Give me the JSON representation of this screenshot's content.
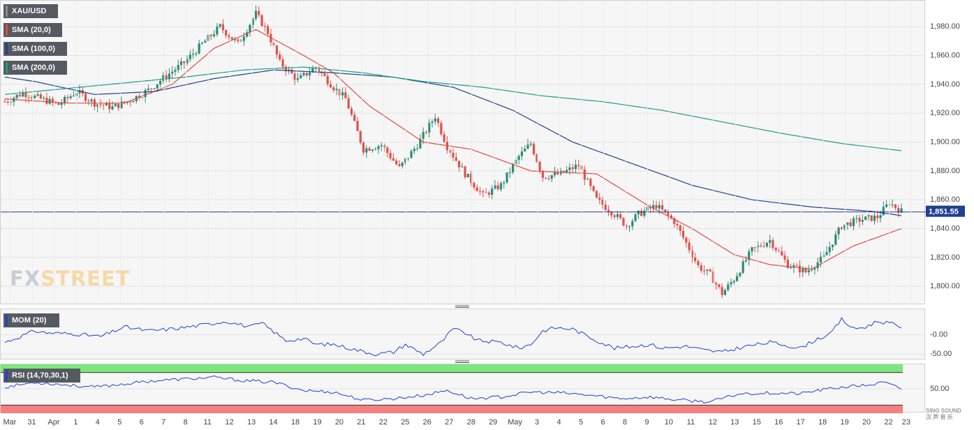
{
  "legends": {
    "symbol": "XAU/USD",
    "sma20": "SMA (20,0)",
    "sma100": "SMA (100,0)",
    "sma200": "SMA (200,0)",
    "mom": "MOM (20)",
    "rsi": "RSI (14,70,30,1)"
  },
  "logo": {
    "fx": "FX",
    "street": "STREET"
  },
  "watermark": {
    "line1": "SINO SOUND",
    "line2": "汉 声 音 乐"
  },
  "colors": {
    "bull": "#2e8b74",
    "bear": "#e0524a",
    "sma20": "#e8473f",
    "sma100": "#1f3f93",
    "sma200": "#1e9e7e",
    "mom": "#1f3fd6",
    "rsi": "#1f3fd6",
    "overbought": "#7ce77c",
    "oversold": "#f58080",
    "price_line": "#1f3f93",
    "price_tag": "#1f3f93"
  },
  "chart_data": {
    "type": "candlestick",
    "symbol": "XAU/USD",
    "timeframe": "4h",
    "current_price": "1,851.55",
    "ylim": [
      1787,
      1998
    ],
    "y_ticks": [
      "1,980.00",
      "1,960.00",
      "1,940.00",
      "1,920.00",
      "1,900.00",
      "1,880.00",
      "1,860.00",
      "1,840.00",
      "1,820.00",
      "1,800.00"
    ],
    "x_labels": [
      "Mar",
      "31",
      "Apr",
      "1",
      "4",
      "5",
      "6",
      "7",
      "8",
      "11",
      "12",
      "13",
      "14",
      "18",
      "19",
      "20",
      "21",
      "22",
      "25",
      "26",
      "27",
      "28",
      "29",
      "May",
      "3",
      "4",
      "5",
      "6",
      "8",
      "9",
      "10",
      "11",
      "12",
      "13",
      "15",
      "16",
      "17",
      "18",
      "19",
      "20",
      "22",
      "23"
    ],
    "anchors": [
      [
        0,
        1928
      ],
      [
        6,
        1934
      ],
      [
        12,
        1930
      ],
      [
        18,
        1926
      ],
      [
        24,
        1935
      ],
      [
        30,
        1927
      ],
      [
        36,
        1924
      ],
      [
        42,
        1929
      ],
      [
        48,
        1936
      ],
      [
        54,
        1946
      ],
      [
        60,
        1955
      ],
      [
        66,
        1968
      ],
      [
        72,
        1980
      ],
      [
        78,
        1968
      ],
      [
        84,
        1989
      ],
      [
        88,
        1976
      ],
      [
        92,
        1955
      ],
      [
        98,
        1943
      ],
      [
        104,
        1952
      ],
      [
        110,
        1938
      ],
      [
        114,
        1930
      ],
      [
        120,
        1895
      ],
      [
        126,
        1898
      ],
      [
        132,
        1882
      ],
      [
        138,
        1898
      ],
      [
        144,
        1918
      ],
      [
        148,
        1897
      ],
      [
        154,
        1878
      ],
      [
        160,
        1863
      ],
      [
        166,
        1870
      ],
      [
        172,
        1890
      ],
      [
        176,
        1899
      ],
      [
        180,
        1876
      ],
      [
        186,
        1878
      ],
      [
        192,
        1884
      ],
      [
        198,
        1860
      ],
      [
        204,
        1850
      ],
      [
        208,
        1842
      ],
      [
        212,
        1850
      ],
      [
        218,
        1856
      ],
      [
        224,
        1845
      ],
      [
        228,
        1830
      ],
      [
        232,
        1814
      ],
      [
        236,
        1808
      ],
      [
        240,
        1795
      ],
      [
        244,
        1805
      ],
      [
        250,
        1825
      ],
      [
        256,
        1832
      ],
      [
        262,
        1815
      ],
      [
        268,
        1810
      ],
      [
        274,
        1820
      ],
      [
        280,
        1842
      ],
      [
        286,
        1846
      ],
      [
        292,
        1848
      ],
      [
        296,
        1858
      ],
      [
        300,
        1852
      ]
    ],
    "smas": {
      "sma20": [
        [
          0,
          1930
        ],
        [
          20,
          1927
        ],
        [
          40,
          1927
        ],
        [
          56,
          1940
        ],
        [
          70,
          1965
        ],
        [
          84,
          1978
        ],
        [
          100,
          1960
        ],
        [
          110,
          1948
        ],
        [
          122,
          1925
        ],
        [
          140,
          1900
        ],
        [
          156,
          1895
        ],
        [
          176,
          1880
        ],
        [
          198,
          1878
        ],
        [
          216,
          1855
        ],
        [
          230,
          1840
        ],
        [
          244,
          1822
        ],
        [
          256,
          1815
        ],
        [
          270,
          1812
        ],
        [
          284,
          1828
        ],
        [
          300,
          1840
        ]
      ],
      "sma100": [
        [
          0,
          1945
        ],
        [
          10,
          1942
        ],
        [
          30,
          1933
        ],
        [
          50,
          1935
        ],
        [
          70,
          1944
        ],
        [
          90,
          1950
        ],
        [
          110,
          1948
        ],
        [
          130,
          1945
        ],
        [
          150,
          1938
        ],
        [
          170,
          1922
        ],
        [
          190,
          1900
        ],
        [
          210,
          1885
        ],
        [
          230,
          1870
        ],
        [
          250,
          1860
        ],
        [
          270,
          1855
        ],
        [
          290,
          1852
        ],
        [
          300,
          1849
        ]
      ],
      "sma200": [
        [
          0,
          1933
        ],
        [
          20,
          1937
        ],
        [
          40,
          1941
        ],
        [
          60,
          1945
        ],
        [
          80,
          1950
        ],
        [
          100,
          1952
        ],
        [
          120,
          1948
        ],
        [
          140,
          1942
        ],
        [
          160,
          1938
        ],
        [
          180,
          1932
        ],
        [
          200,
          1928
        ],
        [
          220,
          1922
        ],
        [
          240,
          1914
        ],
        [
          260,
          1906
        ],
        [
          280,
          1899
        ],
        [
          300,
          1894
        ]
      ]
    },
    "mom": {
      "ylim": [
        -66,
        66
      ],
      "y_ticks": [
        "-0.00",
        "-50.00"
      ],
      "anchors": [
        [
          0,
          -20
        ],
        [
          10,
          10
        ],
        [
          14,
          5
        ],
        [
          24,
          2
        ],
        [
          32,
          -5
        ],
        [
          40,
          20
        ],
        [
          48,
          10
        ],
        [
          56,
          15
        ],
        [
          66,
          25
        ],
        [
          74,
          35
        ],
        [
          82,
          20
        ],
        [
          86,
          30
        ],
        [
          94,
          -15
        ],
        [
          100,
          -10
        ],
        [
          104,
          -25
        ],
        [
          110,
          -25
        ],
        [
          118,
          -40
        ],
        [
          124,
          -50
        ],
        [
          130,
          -45
        ],
        [
          134,
          -25
        ],
        [
          140,
          -50
        ],
        [
          146,
          -20
        ],
        [
          150,
          15
        ],
        [
          154,
          5
        ],
        [
          158,
          -15
        ],
        [
          166,
          -20
        ],
        [
          172,
          -35
        ],
        [
          176,
          -25
        ],
        [
          180,
          10
        ],
        [
          184,
          18
        ],
        [
          190,
          15
        ],
        [
          198,
          -15
        ],
        [
          204,
          -35
        ],
        [
          210,
          -30
        ],
        [
          216,
          -25
        ],
        [
          220,
          -35
        ],
        [
          228,
          -30
        ],
        [
          234,
          -40
        ],
        [
          240,
          -45
        ],
        [
          248,
          -30
        ],
        [
          256,
          -20
        ],
        [
          260,
          -25
        ],
        [
          266,
          -35
        ],
        [
          272,
          -10
        ],
        [
          276,
          0
        ],
        [
          280,
          40
        ],
        [
          284,
          15
        ],
        [
          288,
          20
        ],
        [
          292,
          35
        ],
        [
          296,
          30
        ],
        [
          300,
          20
        ]
      ]
    },
    "rsi": {
      "ylim": [
        20,
        80
      ],
      "y_ticks": [
        "50.00"
      ],
      "overbought": 70,
      "oversold": 30,
      "anchors": [
        [
          0,
          52
        ],
        [
          10,
          58
        ],
        [
          20,
          55
        ],
        [
          30,
          52
        ],
        [
          40,
          56
        ],
        [
          50,
          60
        ],
        [
          60,
          62
        ],
        [
          70,
          64
        ],
        [
          80,
          60
        ],
        [
          90,
          58
        ],
        [
          100,
          48
        ],
        [
          110,
          46
        ],
        [
          120,
          36
        ],
        [
          130,
          38
        ],
        [
          140,
          42
        ],
        [
          148,
          48
        ],
        [
          156,
          38
        ],
        [
          166,
          40
        ],
        [
          176,
          46
        ],
        [
          186,
          45
        ],
        [
          196,
          42
        ],
        [
          206,
          38
        ],
        [
          216,
          40
        ],
        [
          226,
          36
        ],
        [
          236,
          34
        ],
        [
          246,
          44
        ],
        [
          256,
          45
        ],
        [
          266,
          44
        ],
        [
          272,
          48
        ],
        [
          280,
          52
        ],
        [
          290,
          55
        ],
        [
          294,
          58
        ],
        [
          300,
          50
        ]
      ]
    }
  }
}
